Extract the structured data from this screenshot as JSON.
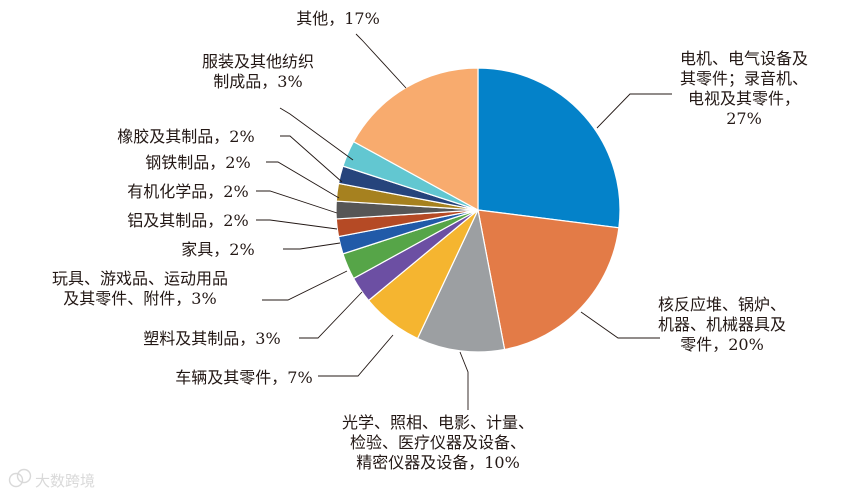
{
  "chart_data": {
    "type": "pie",
    "slices": [
      {
        "lines": [
          "电机、电气设备及",
          "其零件；录音机、",
          "电视及其零件，",
          "27%"
        ],
        "value": 27,
        "color": "#0482c9"
      },
      {
        "lines": [
          "核反应堆、锅炉、",
          "机器、机械器具及",
          "零件，20%"
        ],
        "value": 20,
        "color": "#e37b47"
      },
      {
        "lines": [
          "光学、照相、电影、计量、",
          "检验、医疗仪器及设备、",
          "精密仪器及设备，10%"
        ],
        "value": 10,
        "color": "#9c9fa2"
      },
      {
        "lines": [
          "车辆及其零件，7%"
        ],
        "value": 7,
        "color": "#f5b530"
      },
      {
        "lines": [
          "塑料及其制品，3%"
        ],
        "value": 3,
        "color": "#6c4fa3"
      },
      {
        "lines": [
          "玩具、游戏品、运动用品",
          "及其零件、附件，3%"
        ],
        "value": 3,
        "color": "#56a548"
      },
      {
        "lines": [
          "家具，2%"
        ],
        "value": 2,
        "color": "#215aa8"
      },
      {
        "lines": [
          "铝及其制品，2%"
        ],
        "value": 2,
        "color": "#b54a25"
      },
      {
        "lines": [
          "有机化学品，2%"
        ],
        "value": 2,
        "color": "#565656"
      },
      {
        "lines": [
          "钢铁制品，2%"
        ],
        "value": 2,
        "color": "#a6811f"
      },
      {
        "lines": [
          "橡胶及其制品，2%"
        ],
        "value": 2,
        "color": "#26447c"
      },
      {
        "lines": [
          "服装及其他纺织",
          "制成品，3%"
        ],
        "value": 3,
        "color": "#62c7d1"
      },
      {
        "lines": [
          "其他，17%"
        ],
        "value": 17,
        "color": "#f8ab6e"
      }
    ]
  },
  "watermark": {
    "text": "大数跨境",
    "icon": "chat-bubble-icon"
  }
}
